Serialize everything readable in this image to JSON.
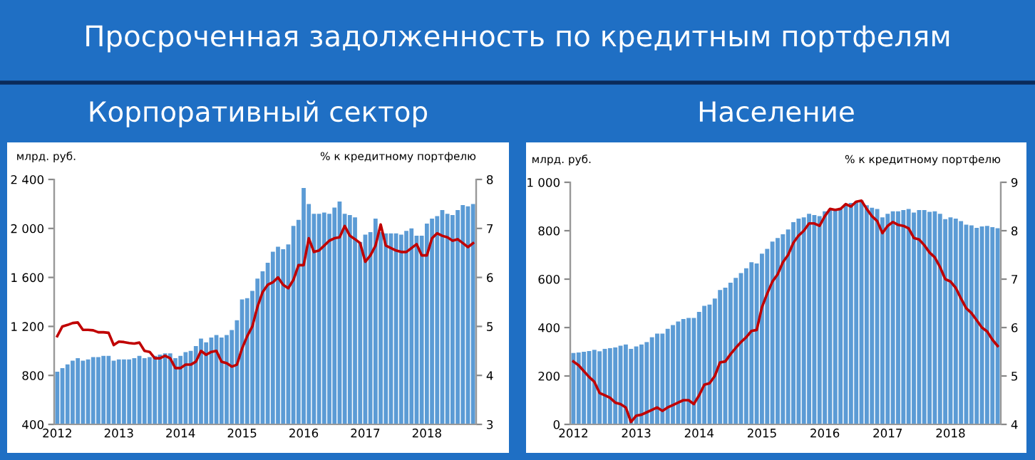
{
  "chart_data": [
    {
      "type": "bar",
      "title": "Корпоративный сектор",
      "ylabel": "млрд. руб.",
      "y2label": "% к кредитному портфелю",
      "annotations": [
        "Просроченная задолженность по кредитным портфелям"
      ],
      "categories": [
        "2012",
        null,
        null,
        null,
        null,
        null,
        null,
        null,
        null,
        null,
        null,
        null,
        "2013",
        null,
        null,
        null,
        null,
        null,
        null,
        null,
        null,
        null,
        null,
        null,
        "2014",
        null,
        null,
        null,
        null,
        null,
        null,
        null,
        null,
        null,
        null,
        null,
        "2015",
        null,
        null,
        null,
        null,
        null,
        null,
        null,
        null,
        null,
        null,
        null,
        "2016",
        null,
        null,
        null,
        null,
        null,
        null,
        null,
        null,
        null,
        null,
        null,
        "2017",
        null,
        null,
        null,
        null,
        null,
        null,
        null,
        null,
        null,
        null,
        null,
        "2018",
        null,
        null,
        null,
        null,
        null,
        null,
        null,
        null,
        null
      ],
      "series": [
        {
          "color": "#5b9bd5",
          "values": [
            830,
            860,
            890,
            920,
            940,
            920,
            930,
            950,
            950,
            960,
            960,
            920,
            930,
            930,
            930,
            940,
            960,
            940,
            950,
            960,
            970,
            980,
            980,
            940,
            960,
            990,
            1000,
            1040,
            1100,
            1070,
            1110,
            1130,
            1110,
            1130,
            1170,
            1250,
            1420,
            1430,
            1490,
            1590,
            1650,
            1720,
            1810,
            1850,
            1830,
            1870,
            2020,
            2070,
            2330,
            2200,
            2120,
            2120,
            2130,
            2120,
            2170,
            2220,
            2120,
            2110,
            2090,
            1890,
            1950,
            1970,
            2080,
            1970,
            1960,
            1960,
            1960,
            1950,
            1980,
            2000,
            1940,
            1940,
            2040,
            2080,
            2100,
            2150,
            2120,
            2110,
            2150,
            2190,
            2180,
            2200
          ]
        },
        {
          "type": "line",
          "axis": "y2",
          "color": "#c00000",
          "values": [
            4.8,
            5.0,
            5.03,
            5.07,
            5.08,
            4.93,
            4.93,
            4.92,
            4.88,
            4.88,
            4.87,
            4.62,
            4.69,
            4.68,
            4.66,
            4.65,
            4.67,
            4.5,
            4.48,
            4.35,
            4.35,
            4.4,
            4.35,
            4.15,
            4.15,
            4.22,
            4.22,
            4.28,
            4.5,
            4.42,
            4.48,
            4.5,
            4.28,
            4.25,
            4.18,
            4.22,
            4.55,
            4.8,
            5.0,
            5.4,
            5.7,
            5.85,
            5.9,
            6.0,
            5.85,
            5.78,
            5.95,
            6.25,
            6.25,
            6.8,
            6.52,
            6.55,
            6.65,
            6.75,
            6.8,
            6.82,
            7.05,
            6.85,
            6.78,
            6.7,
            6.32,
            6.45,
            6.65,
            7.08,
            6.65,
            6.6,
            6.55,
            6.52,
            6.52,
            6.6,
            6.68,
            6.45,
            6.45,
            6.8,
            6.9,
            6.85,
            6.82,
            6.75,
            6.78,
            6.7,
            6.62,
            6.7
          ]
        }
      ],
      "ylim": [
        400,
        2400
      ],
      "yticks": [
        400,
        800,
        {
          "value": 1200,
          "label": "1 200"
        },
        {
          "value": 1600,
          "label": "1 600"
        },
        {
          "value": 2000,
          "label": "2 000"
        },
        {
          "value": 2400,
          "label": "2 400"
        }
      ],
      "y2lim": [
        3,
        8
      ],
      "y2ticks": [
        3,
        4,
        5,
        6,
        7,
        8
      ]
    },
    {
      "type": "bar",
      "title": "Население",
      "ylabel": "млрд. руб.",
      "y2label": "% к кредитному портфелю",
      "categories": [
        "2012",
        null,
        null,
        null,
        null,
        null,
        null,
        null,
        null,
        null,
        null,
        null,
        "2013",
        null,
        null,
        null,
        null,
        null,
        null,
        null,
        null,
        null,
        null,
        null,
        "2014",
        null,
        null,
        null,
        null,
        null,
        null,
        null,
        null,
        null,
        null,
        null,
        "2015",
        null,
        null,
        null,
        null,
        null,
        null,
        null,
        null,
        null,
        null,
        null,
        "2016",
        null,
        null,
        null,
        null,
        null,
        null,
        null,
        null,
        null,
        null,
        null,
        "2017",
        null,
        null,
        null,
        null,
        null,
        null,
        null,
        null,
        null,
        null,
        null,
        "2018",
        null,
        null,
        null,
        null,
        null,
        null,
        null,
        null,
        null
      ],
      "series": [
        {
          "color": "#5b9bd5",
          "values": [
            295,
            297,
            300,
            303,
            308,
            302,
            312,
            315,
            318,
            325,
            330,
            312,
            322,
            330,
            340,
            360,
            375,
            375,
            395,
            410,
            425,
            435,
            440,
            440,
            465,
            490,
            495,
            520,
            555,
            565,
            585,
            605,
            625,
            645,
            670,
            665,
            705,
            725,
            755,
            770,
            785,
            805,
            835,
            850,
            855,
            870,
            865,
            860,
            880,
            890,
            890,
            895,
            910,
            915,
            920,
            925,
            905,
            895,
            890,
            855,
            870,
            880,
            880,
            885,
            890,
            875,
            885,
            885,
            878,
            880,
            870,
            848,
            855,
            850,
            840,
            825,
            822,
            812,
            818,
            820,
            815,
            810
          ]
        },
        {
          "type": "line",
          "axis": "y2",
          "color": "#c00000",
          "values": [
            5.3,
            5.22,
            5.1,
            4.98,
            4.88,
            4.65,
            4.6,
            4.55,
            4.45,
            4.42,
            4.35,
            4.05,
            4.18,
            4.2,
            4.25,
            4.3,
            4.35,
            4.28,
            4.35,
            4.4,
            4.45,
            4.5,
            4.5,
            4.42,
            4.6,
            4.82,
            4.85,
            5.0,
            5.28,
            5.3,
            5.45,
            5.58,
            5.7,
            5.8,
            5.93,
            5.95,
            6.42,
            6.7,
            6.95,
            7.1,
            7.35,
            7.5,
            7.75,
            7.9,
            8.0,
            8.15,
            8.15,
            8.1,
            8.3,
            8.45,
            8.43,
            8.45,
            8.55,
            8.5,
            8.6,
            8.62,
            8.45,
            8.3,
            8.2,
            7.95,
            8.1,
            8.18,
            8.12,
            8.1,
            8.05,
            7.85,
            7.82,
            7.7,
            7.55,
            7.45,
            7.25,
            7.0,
            6.95,
            6.82,
            6.6,
            6.4,
            6.3,
            6.15,
            6.0,
            5.92,
            5.75,
            5.62
          ]
        }
      ],
      "ylim": [
        0,
        1000
      ],
      "yticks": [
        0,
        200,
        400,
        600,
        800,
        {
          "value": 1000,
          "label": "1 000"
        }
      ],
      "y2lim": [
        4,
        9
      ],
      "y2ticks": [
        4,
        5,
        6,
        7,
        8,
        9
      ]
    }
  ]
}
